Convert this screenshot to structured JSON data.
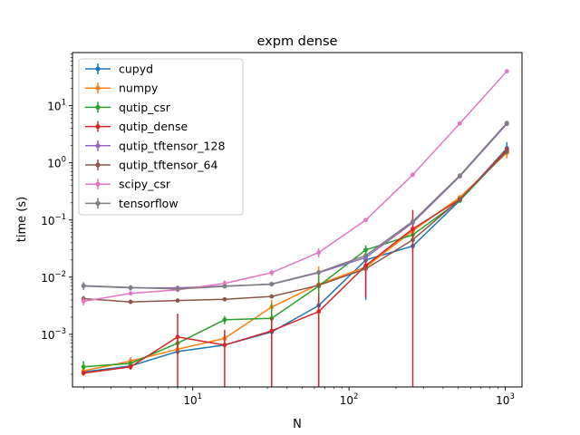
{
  "chart_data": {
    "type": "line",
    "title": "expm dense",
    "xlabel": "N",
    "ylabel": "time (s)",
    "xscale": "log",
    "yscale": "log",
    "xlim": [
      1.7,
      1280
    ],
    "ylim": [
      0.00012,
      85
    ],
    "x_ticks": [
      {
        "value": 10,
        "base": "10",
        "exp": "1"
      },
      {
        "value": 100,
        "base": "10",
        "exp": "2"
      },
      {
        "value": 1000,
        "base": "10",
        "exp": "3"
      }
    ],
    "y_ticks": [
      {
        "value": 0.001,
        "base": "10",
        "exp": "−3"
      },
      {
        "value": 0.01,
        "base": "10",
        "exp": "−2"
      },
      {
        "value": 0.1,
        "base": "10",
        "exp": "−1"
      },
      {
        "value": 1,
        "base": "10",
        "exp": "0"
      },
      {
        "value": 10,
        "base": "10",
        "exp": "1"
      }
    ],
    "legend_position": "upper-left",
    "x": [
      2,
      4,
      8,
      16,
      32,
      64,
      128,
      256,
      512,
      1024
    ],
    "series": [
      {
        "name": "cupyd",
        "color": "#1f77b4",
        "values": [
          0.00022,
          0.00028,
          0.0005,
          0.00065,
          0.0011,
          0.0032,
          0.02,
          0.035,
          0.22,
          1.8
        ],
        "err_low": [
          0.0002,
          0.00026,
          0.00046,
          0.0006,
          0.001,
          0.0026,
          0.004,
          0.03,
          0.2,
          1.3
        ],
        "err_high": [
          0.00024,
          0.0003,
          0.00054,
          0.0007,
          0.0012,
          0.0038,
          0.03,
          0.04,
          0.24,
          2.3
        ]
      },
      {
        "name": "numpy",
        "color": "#ff7f0e",
        "values": [
          0.00023,
          0.00034,
          0.00055,
          0.00085,
          0.003,
          0.0075,
          0.015,
          0.065,
          0.25,
          1.5
        ],
        "err_low": [
          0.0002,
          0.00028,
          0.00045,
          0.0007,
          0.0021,
          0.005,
          0.012,
          0.06,
          0.23,
          1.2
        ],
        "err_high": [
          0.00026,
          0.0004,
          0.00065,
          0.001,
          0.004,
          0.0155,
          0.018,
          0.07,
          0.27,
          1.8
        ]
      },
      {
        "name": "qutip_csr",
        "color": "#2ca02c",
        "values": [
          0.00027,
          0.00031,
          0.0007,
          0.0018,
          0.0019,
          0.007,
          0.03,
          0.055,
          0.22,
          1.6
        ],
        "err_low": [
          0.00024,
          0.00028,
          0.0006,
          0.0015,
          0.0001,
          0.0001,
          0.024,
          0.05,
          0.2,
          1.4
        ],
        "err_high": [
          0.00034,
          0.00034,
          0.0008,
          0.0021,
          0.0035,
          0.012,
          0.036,
          0.06,
          0.24,
          1.8
        ]
      },
      {
        "name": "qutip_dense",
        "color": "#d62728",
        "values": [
          0.00021,
          0.00027,
          0.0009,
          0.00065,
          0.00115,
          0.0025,
          0.016,
          0.07,
          0.23,
          1.7
        ],
        "err_low": [
          0.00019,
          0.00024,
          0.0001,
          0.0001,
          0.0001,
          0.0001,
          0.0045,
          0.0001,
          0.21,
          1.5
        ],
        "err_high": [
          0.00023,
          0.0003,
          0.0023,
          0.0012,
          0.002,
          0.0051,
          0.025,
          0.15,
          0.25,
          1.9
        ]
      },
      {
        "name": "qutip_tftensor_128",
        "color": "#9467bd",
        "values": [
          0.007,
          0.0065,
          0.0065,
          0.007,
          0.0075,
          0.012,
          0.022,
          0.09,
          0.58,
          4.8
        ],
        "err_low": [
          0.006,
          0.0058,
          0.006,
          0.0065,
          0.007,
          0.011,
          0.02,
          0.085,
          0.55,
          4.5
        ],
        "err_high": [
          0.0082,
          0.0072,
          0.007,
          0.0075,
          0.008,
          0.013,
          0.024,
          0.095,
          0.61,
          5.1
        ]
      },
      {
        "name": "qutip_tftensor_64",
        "color": "#8c564b",
        "values": [
          0.0042,
          0.0037,
          0.0039,
          0.0041,
          0.0046,
          0.0072,
          0.014,
          0.045,
          0.23,
          1.6
        ],
        "err_low": [
          0.0037,
          0.0034,
          0.0036,
          0.0038,
          0.0043,
          0.0068,
          0.013,
          0.042,
          0.22,
          1.5
        ],
        "err_high": [
          0.0047,
          0.004,
          0.0042,
          0.0044,
          0.0049,
          0.0076,
          0.015,
          0.048,
          0.24,
          1.7
        ]
      },
      {
        "name": "scipy_csr",
        "color": "#e377c2",
        "values": [
          0.0038,
          0.0052,
          0.006,
          0.0078,
          0.012,
          0.027,
          0.1,
          0.62,
          4.9,
          40
        ],
        "err_low": [
          0.0032,
          0.0048,
          0.0055,
          0.0068,
          0.0105,
          0.022,
          0.095,
          0.6,
          4.7,
          39
        ],
        "err_high": [
          0.0044,
          0.0056,
          0.0065,
          0.0088,
          0.0135,
          0.032,
          0.105,
          0.64,
          5.1,
          41
        ]
      },
      {
        "name": "tensorflow",
        "color": "#7f7f7f",
        "values": [
          0.0071,
          0.0066,
          0.0062,
          0.0069,
          0.0076,
          0.0122,
          0.024,
          0.095,
          0.6,
          5.0
        ],
        "err_low": [
          0.0062,
          0.006,
          0.0058,
          0.0064,
          0.0071,
          0.0113,
          0.022,
          0.09,
          0.57,
          4.7
        ],
        "err_high": [
          0.008,
          0.0072,
          0.0066,
          0.0074,
          0.0081,
          0.0131,
          0.026,
          0.1,
          0.63,
          5.3
        ]
      }
    ]
  }
}
